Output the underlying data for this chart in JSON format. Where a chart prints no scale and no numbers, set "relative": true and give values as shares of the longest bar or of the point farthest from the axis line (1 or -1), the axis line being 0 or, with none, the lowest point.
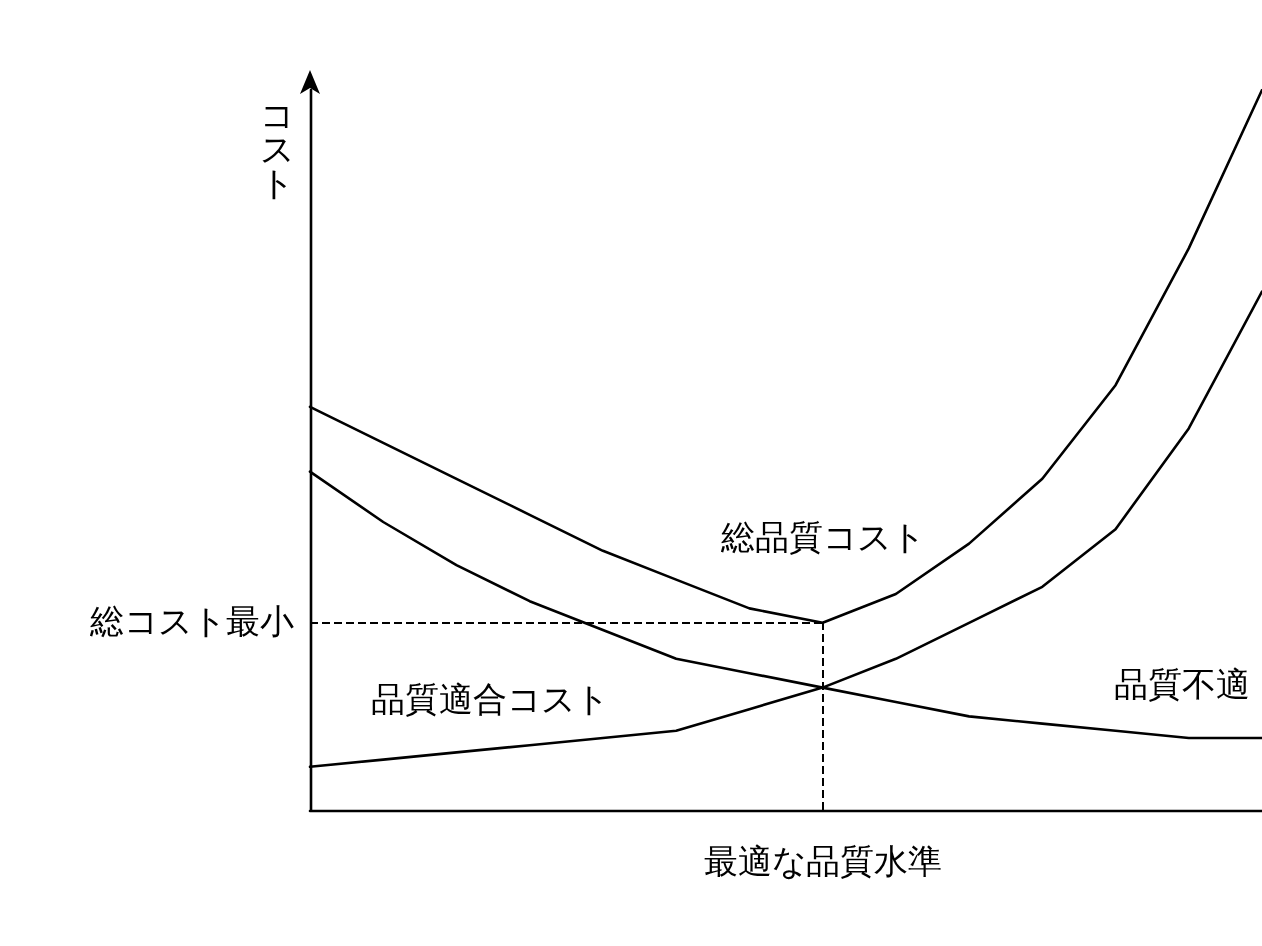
{
  "chart_data": {
    "type": "line",
    "relative": true,
    "ylabel": "コスト",
    "xlabel": "最適な品質水準",
    "categories": [
      null,
      null,
      null,
      null,
      null,
      null,
      null,
      null,
      null,
      null,
      null,
      null,
      null,
      null
    ],
    "tick_labels": false,
    "grid": false,
    "marker": "none",
    "line_style": "solid",
    "series": [
      {
        "name": "総品質コスト",
        "color": "#000000",
        "values": [
          0.56,
          0.51,
          0.46,
          0.41,
          0.36,
          0.32,
          0.28,
          0.26,
          0.3,
          0.37,
          0.46,
          0.59,
          0.78,
          1
        ]
      },
      {
        "name": "品質適合コスト",
        "color": "#000000",
        "values": [
          0.06,
          0.07,
          0.08,
          0.09,
          0.1,
          0.11,
          0.14,
          0.17,
          0.21,
          0.26,
          0.31,
          0.39,
          0.53,
          0.72
        ]
      },
      {
        "name": "品質不適",
        "color": "#000000",
        "values": [
          0.47,
          0.4,
          0.34,
          0.29,
          0.25,
          0.21,
          0.19,
          0.17,
          0.15,
          0.13,
          0.12,
          0.11,
          0.1,
          0.1
        ]
      }
    ],
    "ref_lines": [
      {
        "axis": "y",
        "value": 0.26,
        "label": "総コスト最小",
        "line_style": "dashed",
        "color": "#000000"
      }
    ]
  }
}
